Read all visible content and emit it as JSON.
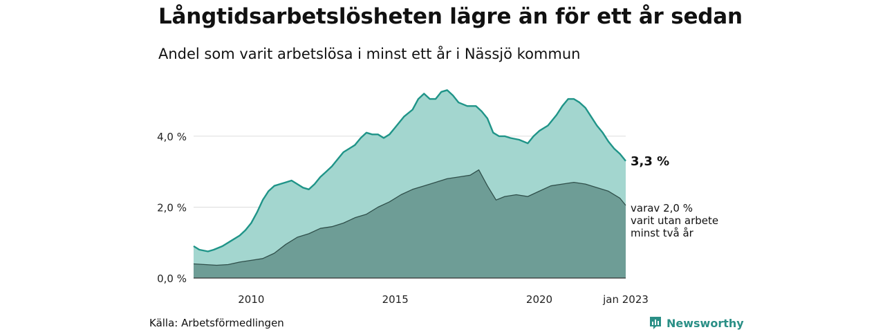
{
  "title": "Långtidsarbetslösheten lägre än för ett år sedan",
  "subtitle": "Andel som varit arbetslösa i minst ett år i Nässjö kommun",
  "source": "Källa: Arbetsförmedlingen",
  "brand": "Newsworthy",
  "colors": {
    "total_fill": "#a3d6cf",
    "total_line": "#1f9488",
    "long_fill": "#6e9d96",
    "long_line": "#2f4f4a",
    "brand": "#2a8f86"
  },
  "chart_data": {
    "type": "area",
    "title": "Långtidsarbetslösheten lägre än för ett år sedan",
    "subtitle": "Andel som varit arbetslösa i minst ett år i Nässjö kommun",
    "xlabel": "",
    "ylabel": "",
    "xlim": [
      2008.0,
      2023.0
    ],
    "ylim": [
      0,
      5.5
    ],
    "grid": true,
    "x_ticks": [
      {
        "value": 2010.0,
        "label": "2010"
      },
      {
        "value": 2015.0,
        "label": "2015"
      },
      {
        "value": 2020.0,
        "label": "2020"
      },
      {
        "value": 2023.0,
        "label": "jan 2023"
      }
    ],
    "y_ticks": [
      {
        "value": 0,
        "label": "0,0 %"
      },
      {
        "value": 2,
        "label": "2,0 %"
      },
      {
        "value": 4,
        "label": "4,0 %"
      }
    ],
    "series": [
      {
        "name": "",
        "points": [
          [
            2008.0,
            0.9
          ],
          [
            2008.2,
            0.8
          ],
          [
            2008.5,
            0.75
          ],
          [
            2008.7,
            0.8
          ],
          [
            2009.0,
            0.9
          ],
          [
            2009.3,
            1.05
          ],
          [
            2009.6,
            1.2
          ],
          [
            2009.8,
            1.35
          ],
          [
            2010.0,
            1.55
          ],
          [
            2010.2,
            1.85
          ],
          [
            2010.4,
            2.2
          ],
          [
            2010.6,
            2.45
          ],
          [
            2010.8,
            2.6
          ],
          [
            2011.0,
            2.65
          ],
          [
            2011.2,
            2.7
          ],
          [
            2011.4,
            2.75
          ],
          [
            2011.6,
            2.65
          ],
          [
            2011.8,
            2.55
          ],
          [
            2012.0,
            2.5
          ],
          [
            2012.2,
            2.65
          ],
          [
            2012.4,
            2.85
          ],
          [
            2012.6,
            3.0
          ],
          [
            2012.8,
            3.15
          ],
          [
            2013.0,
            3.35
          ],
          [
            2013.2,
            3.55
          ],
          [
            2013.4,
            3.65
          ],
          [
            2013.6,
            3.75
          ],
          [
            2013.8,
            3.95
          ],
          [
            2014.0,
            4.1
          ],
          [
            2014.2,
            4.05
          ],
          [
            2014.4,
            4.05
          ],
          [
            2014.6,
            3.95
          ],
          [
            2014.8,
            4.05
          ],
          [
            2015.0,
            4.25
          ],
          [
            2015.3,
            4.55
          ],
          [
            2015.6,
            4.75
          ],
          [
            2015.8,
            5.05
          ],
          [
            2016.0,
            5.2
          ],
          [
            2016.2,
            5.05
          ],
          [
            2016.4,
            5.05
          ],
          [
            2016.6,
            5.25
          ],
          [
            2016.8,
            5.3
          ],
          [
            2017.0,
            5.15
          ],
          [
            2017.2,
            4.95
          ],
          [
            2017.5,
            4.85
          ],
          [
            2017.8,
            4.85
          ],
          [
            2018.0,
            4.7
          ],
          [
            2018.2,
            4.5
          ],
          [
            2018.4,
            4.1
          ],
          [
            2018.6,
            4.0
          ],
          [
            2018.8,
            4.0
          ],
          [
            2019.0,
            3.95
          ],
          [
            2019.3,
            3.9
          ],
          [
            2019.6,
            3.8
          ],
          [
            2019.8,
            4.0
          ],
          [
            2020.0,
            4.15
          ],
          [
            2020.3,
            4.3
          ],
          [
            2020.6,
            4.6
          ],
          [
            2020.8,
            4.85
          ],
          [
            2021.0,
            5.05
          ],
          [
            2021.2,
            5.05
          ],
          [
            2021.4,
            4.95
          ],
          [
            2021.6,
            4.8
          ],
          [
            2021.8,
            4.55
          ],
          [
            2022.0,
            4.3
          ],
          [
            2022.2,
            4.1
          ],
          [
            2022.4,
            3.85
          ],
          [
            2022.6,
            3.65
          ],
          [
            2022.8,
            3.5
          ],
          [
            2023.0,
            3.3
          ]
        ]
      },
      {
        "name": "",
        "points": [
          [
            2008.0,
            0.4
          ],
          [
            2008.4,
            0.38
          ],
          [
            2008.8,
            0.36
          ],
          [
            2009.2,
            0.38
          ],
          [
            2009.6,
            0.45
          ],
          [
            2010.0,
            0.5
          ],
          [
            2010.4,
            0.55
          ],
          [
            2010.8,
            0.7
          ],
          [
            2011.2,
            0.95
          ],
          [
            2011.6,
            1.15
          ],
          [
            2012.0,
            1.25
          ],
          [
            2012.4,
            1.4
          ],
          [
            2012.8,
            1.45
          ],
          [
            2013.2,
            1.55
          ],
          [
            2013.6,
            1.7
          ],
          [
            2014.0,
            1.8
          ],
          [
            2014.4,
            2.0
          ],
          [
            2014.8,
            2.15
          ],
          [
            2015.2,
            2.35
          ],
          [
            2015.6,
            2.5
          ],
          [
            2016.0,
            2.6
          ],
          [
            2016.4,
            2.7
          ],
          [
            2016.8,
            2.8
          ],
          [
            2017.2,
            2.85
          ],
          [
            2017.6,
            2.9
          ],
          [
            2017.9,
            3.05
          ],
          [
            2018.2,
            2.6
          ],
          [
            2018.5,
            2.2
          ],
          [
            2018.8,
            2.3
          ],
          [
            2019.2,
            2.35
          ],
          [
            2019.6,
            2.3
          ],
          [
            2020.0,
            2.45
          ],
          [
            2020.4,
            2.6
          ],
          [
            2020.8,
            2.65
          ],
          [
            2021.2,
            2.7
          ],
          [
            2021.6,
            2.65
          ],
          [
            2022.0,
            2.55
          ],
          [
            2022.4,
            2.45
          ],
          [
            2022.8,
            2.25
          ],
          [
            2023.0,
            2.05
          ]
        ]
      }
    ],
    "annotations": {
      "total_label": "3,3 %",
      "long_label_lines": [
        "varav 2,0 %",
        "varit utan arbete",
        "minst två år"
      ]
    }
  }
}
